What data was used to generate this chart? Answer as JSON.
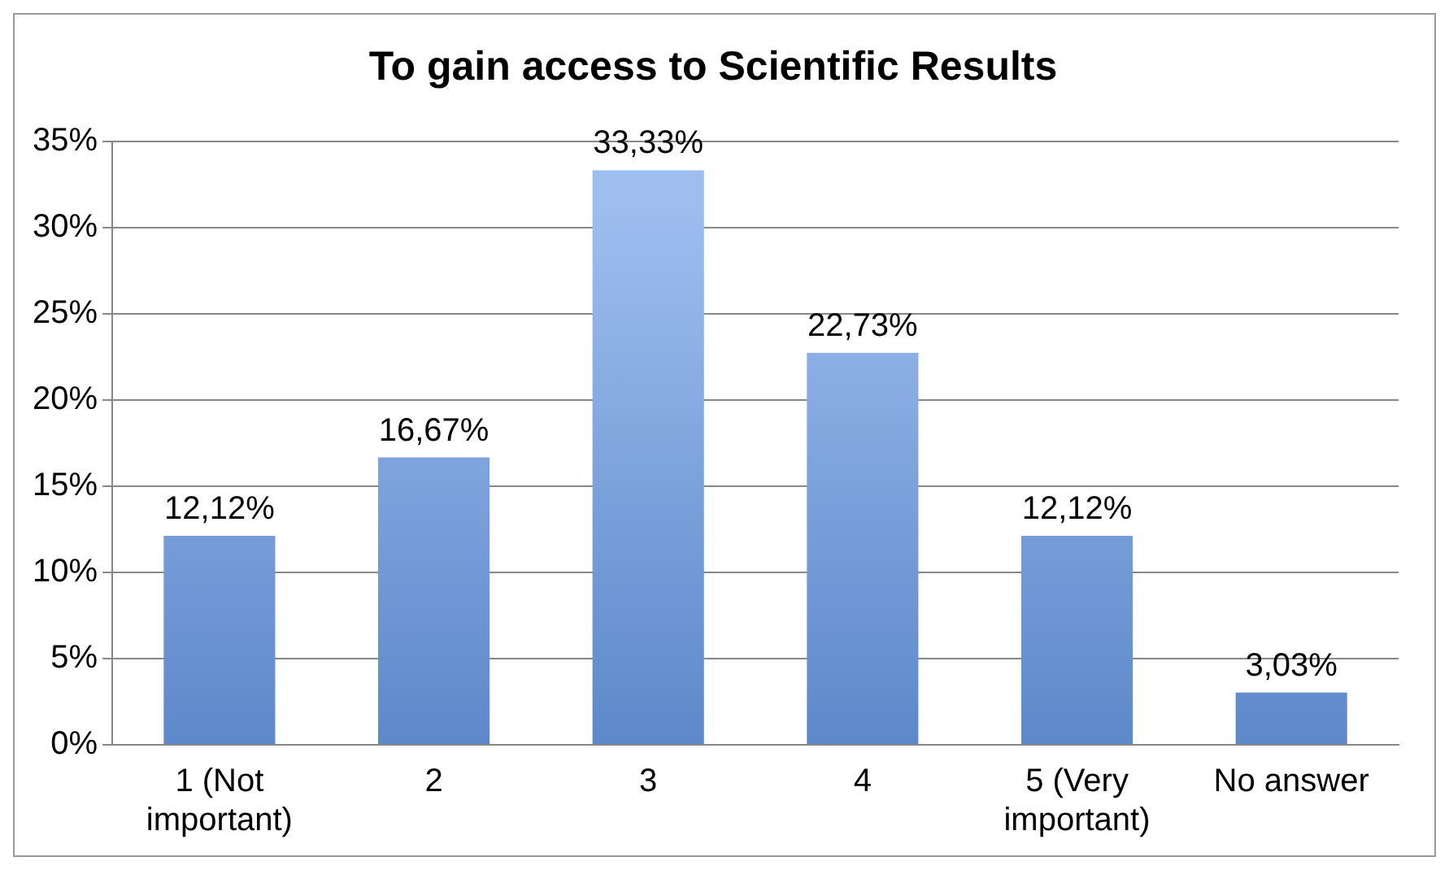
{
  "chart_data": {
    "type": "bar",
    "title": "To gain access to Scientific Results",
    "categories": [
      "1 (Not important)",
      "2",
      "3",
      "4",
      "5 (Very important)",
      "No answer"
    ],
    "values": [
      12.12,
      16.67,
      33.33,
      22.73,
      12.12,
      3.03
    ],
    "value_labels": [
      "12,12%",
      "16,67%",
      "33,33%",
      "22,73%",
      "12,12%",
      "3,03%"
    ],
    "color": "#6a9be6",
    "ylim": [
      0,
      35
    ],
    "yticks": [
      {
        "value": 0,
        "label": "0%"
      },
      {
        "value": 5,
        "label": "5%"
      },
      {
        "value": 10,
        "label": "10%"
      },
      {
        "value": 15,
        "label": "15%"
      },
      {
        "value": 20,
        "label": "20%"
      },
      {
        "value": 25,
        "label": "25%"
      },
      {
        "value": 30,
        "label": "30%"
      },
      {
        "value": 35,
        "label": "35%"
      }
    ],
    "grid": "y",
    "legend": false
  }
}
